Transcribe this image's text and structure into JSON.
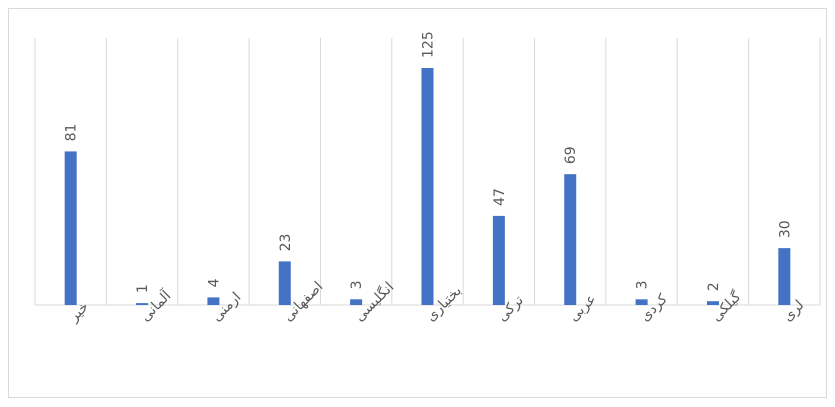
{
  "chart_data": {
    "type": "bar",
    "categories": [
      "خیر",
      "آلمانی",
      "ارمنی",
      "اصفهانی",
      "انگلیسی",
      "بختیاری",
      "ترکی",
      "عربی",
      "کردی",
      "گیلکی",
      "لری"
    ],
    "values": [
      81,
      1,
      4,
      23,
      3,
      125,
      47,
      69,
      3,
      2,
      30
    ],
    "color": "#4472c4",
    "grid": true
  }
}
